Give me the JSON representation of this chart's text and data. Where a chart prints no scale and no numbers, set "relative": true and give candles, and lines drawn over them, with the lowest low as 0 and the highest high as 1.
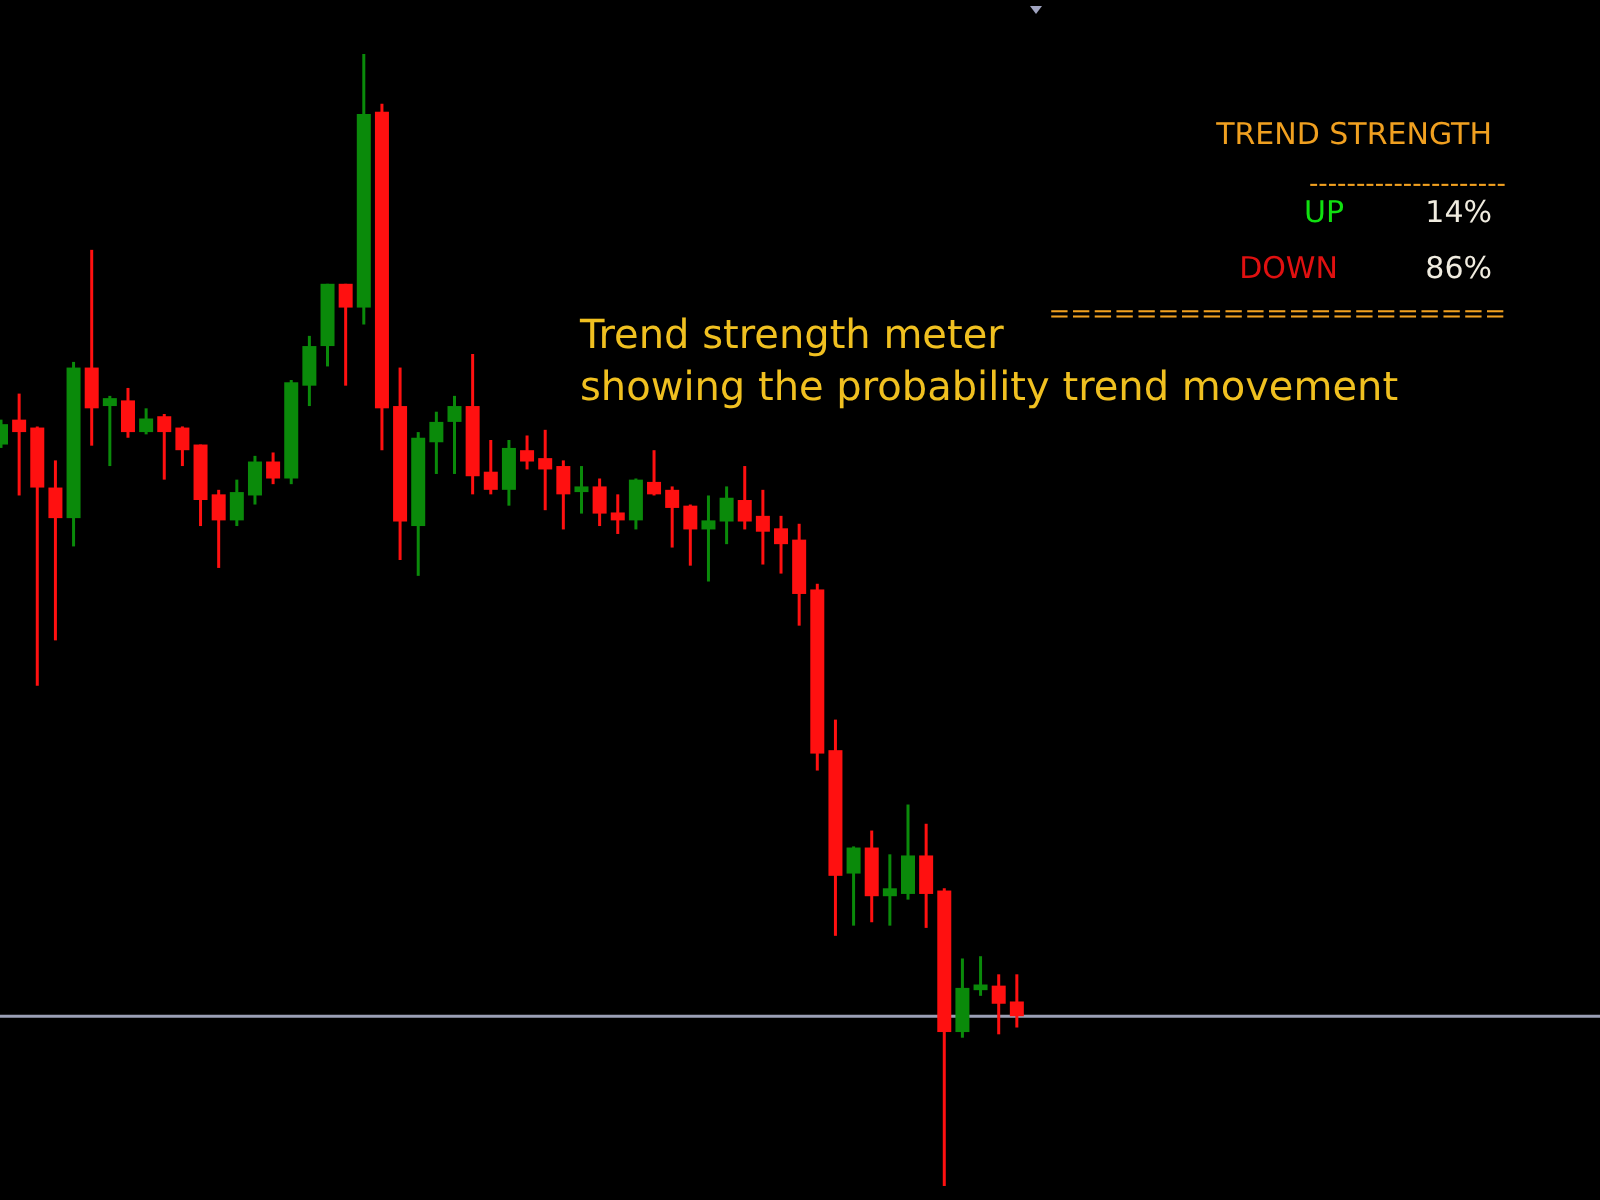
{
  "chart_data": {
    "type": "candlestick",
    "relative": true,
    "categories": [
      null,
      null,
      null,
      null,
      null,
      null,
      null,
      null,
      null,
      null,
      null,
      null,
      null,
      null,
      null,
      null,
      null,
      null,
      null,
      null,
      null,
      null,
      null,
      null,
      null,
      null,
      null,
      null,
      null,
      null,
      null,
      null,
      null,
      null,
      null,
      null,
      null,
      null,
      null,
      null,
      null,
      null,
      null,
      null,
      null,
      null,
      null,
      null,
      null,
      null,
      null,
      null,
      null,
      null,
      null,
      null,
      null
    ],
    "ohlc": [
      [
        0.655,
        0.677,
        0.652,
        0.673
      ],
      [
        0.677,
        0.7,
        0.61,
        0.666
      ],
      [
        0.67,
        0.671,
        0.442,
        0.617
      ],
      [
        0.617,
        0.641,
        0.482,
        0.59
      ],
      [
        0.59,
        0.728,
        0.565,
        0.723
      ],
      [
        0.723,
        0.827,
        0.654,
        0.687
      ],
      [
        0.689,
        0.698,
        0.636,
        0.696
      ],
      [
        0.694,
        0.705,
        0.661,
        0.666
      ],
      [
        0.666,
        0.687,
        0.664,
        0.678
      ],
      [
        0.68,
        0.682,
        0.624,
        0.666
      ],
      [
        0.67,
        0.671,
        0.636,
        0.65
      ],
      [
        0.655,
        0.655,
        0.583,
        0.606
      ],
      [
        0.611,
        0.615,
        0.546,
        0.588
      ],
      [
        0.588,
        0.624,
        0.583,
        0.613
      ],
      [
        0.61,
        0.645,
        0.602,
        0.64
      ],
      [
        0.64,
        0.648,
        0.62,
        0.625
      ],
      [
        0.625,
        0.712,
        0.62,
        0.71
      ],
      [
        0.707,
        0.751,
        0.689,
        0.742
      ],
      [
        0.742,
        0.797,
        0.724,
        0.797
      ],
      [
        0.797,
        0.797,
        0.707,
        0.776
      ],
      [
        0.776,
        1.0,
        0.761,
        0.947
      ],
      [
        0.949,
        0.956,
        0.65,
        0.687
      ],
      [
        0.689,
        0.723,
        0.553,
        0.587
      ],
      [
        0.583,
        0.666,
        0.539,
        0.661
      ],
      [
        0.657,
        0.684,
        0.629,
        0.675
      ],
      [
        0.675,
        0.698,
        0.629,
        0.689
      ],
      [
        0.689,
        0.735,
        0.611,
        0.627
      ],
      [
        0.631,
        0.659,
        0.611,
        0.615
      ],
      [
        0.615,
        0.659,
        0.601,
        0.652
      ],
      [
        0.65,
        0.663,
        0.633,
        0.64
      ],
      [
        0.643,
        0.668,
        0.597,
        0.633
      ],
      [
        0.636,
        0.641,
        0.58,
        0.611
      ],
      [
        0.613,
        0.636,
        0.594,
        0.618
      ],
      [
        0.618,
        0.625,
        0.583,
        0.594
      ],
      [
        0.595,
        0.611,
        0.576,
        0.588
      ],
      [
        0.588,
        0.625,
        0.58,
        0.624
      ],
      [
        0.622,
        0.65,
        0.61,
        0.611
      ],
      [
        0.615,
        0.618,
        0.564,
        0.599
      ],
      [
        0.601,
        0.602,
        0.548,
        0.58
      ],
      [
        0.58,
        0.61,
        0.534,
        0.588
      ],
      [
        0.587,
        0.618,
        0.567,
        0.608
      ],
      [
        0.606,
        0.636,
        0.58,
        0.587
      ],
      [
        0.592,
        0.615,
        0.549,
        0.578
      ],
      [
        0.581,
        0.592,
        0.541,
        0.567
      ],
      [
        0.571,
        0.585,
        0.495,
        0.523
      ],
      [
        0.527,
        0.532,
        0.367,
        0.382
      ],
      [
        0.385,
        0.412,
        0.221,
        0.274
      ],
      [
        0.276,
        0.3,
        0.23,
        0.299
      ],
      [
        0.299,
        0.314,
        0.233,
        0.256
      ],
      [
        0.256,
        0.293,
        0.23,
        0.263
      ],
      [
        0.258,
        0.337,
        0.253,
        0.292
      ],
      [
        0.292,
        0.32,
        0.228,
        0.258
      ],
      [
        0.261,
        0.263,
        0.0,
        0.136
      ],
      [
        0.136,
        0.201,
        0.131,
        0.175
      ],
      [
        0.173,
        0.203,
        0.168,
        0.178
      ],
      [
        0.177,
        0.187,
        0.134,
        0.161
      ],
      [
        0.163,
        0.187,
        0.14,
        0.15
      ]
    ],
    "colors": [
      "#0a8a0a",
      "#ff1010",
      "#ff1010",
      "#ff1010",
      "#0a8a0a",
      "#ff1010",
      "#0a8a0a",
      "#ff1010",
      "#0a8a0a",
      "#ff1010",
      "#ff1010",
      "#ff1010",
      "#ff1010",
      "#0a8a0a",
      "#0a8a0a",
      "#ff1010",
      "#0a8a0a",
      "#0a8a0a",
      "#0a8a0a",
      "#ff1010",
      "#0a8a0a",
      "#ff1010",
      "#ff1010",
      "#0a8a0a",
      "#0a8a0a",
      "#0a8a0a",
      "#ff1010",
      "#ff1010",
      "#0a8a0a",
      "#ff1010",
      "#ff1010",
      "#ff1010",
      "#0a8a0a",
      "#ff1010",
      "#ff1010",
      "#0a8a0a",
      "#ff1010",
      "#ff1010",
      "#ff1010",
      "#0a8a0a",
      "#0a8a0a",
      "#ff1010",
      "#ff1010",
      "#ff1010",
      "#ff1010",
      "#ff1010",
      "#ff1010",
      "#0a8a0a",
      "#ff1010",
      "#0a8a0a",
      "#0a8a0a",
      "#ff1010",
      "#ff1010",
      "#0a8a0a",
      "#0a8a0a",
      "#ff1010",
      "#ff1010"
    ],
    "ref_lines": [
      {
        "axis": "y",
        "value": 0.15,
        "color": "#9a9fb5"
      }
    ],
    "annotations": [
      "TREND STRENGTH",
      "---------------------",
      "UP",
      "14%",
      "DOWN",
      "86%",
      "=====================",
      "Trend strength meter\nshowing the probability trend movement"
    ]
  }
}
